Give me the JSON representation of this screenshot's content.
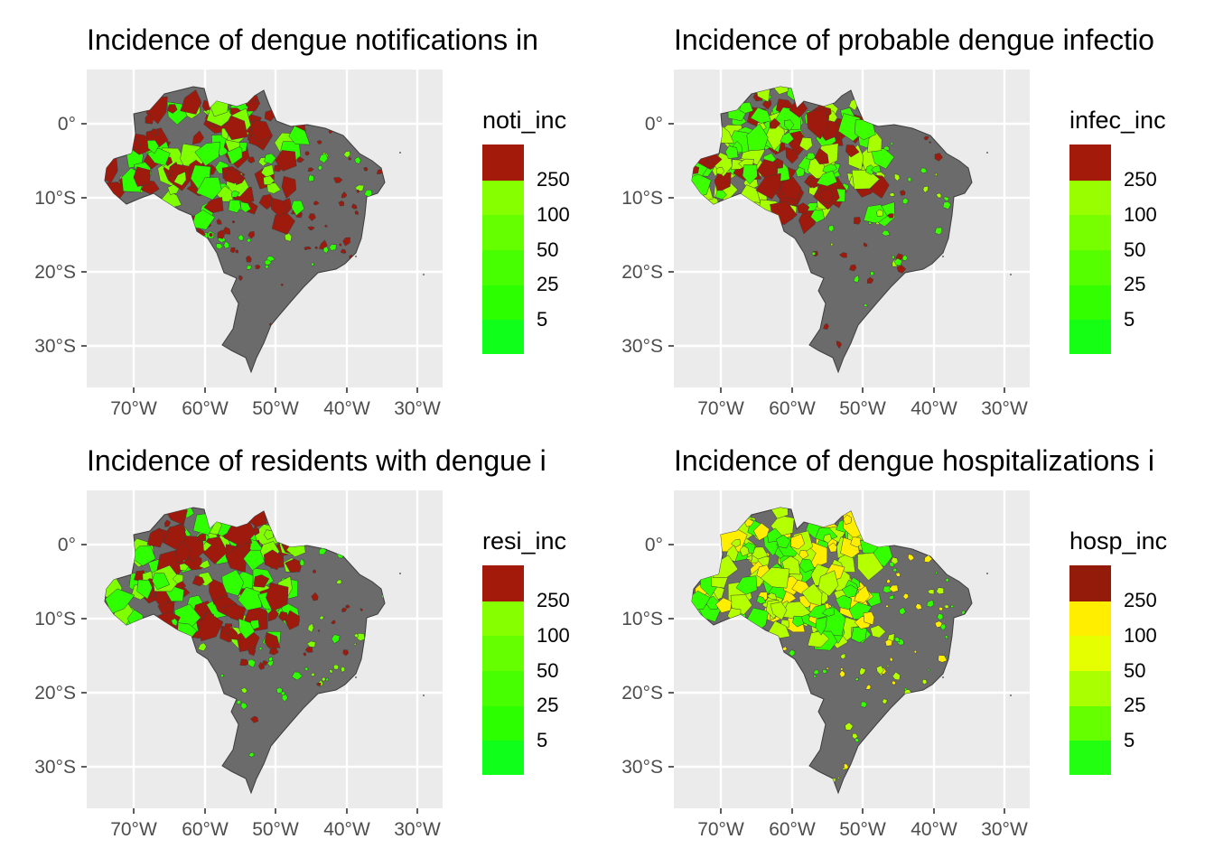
{
  "panels": [
    {
      "title": "Incidence of dengue notifications in",
      "legend": {
        "title": "noti_inc",
        "breaks": [
          "250",
          "100",
          "50",
          "25",
          "5"
        ],
        "colors": [
          "#a31a0a",
          "#86ff00",
          "#66ff00",
          "#47ff00",
          "#2cff00",
          "#0fff1a"
        ]
      },
      "palette": {
        "high": "#9e1a0c",
        "mid": "#7fff00",
        "low": "#2fff00"
      },
      "weights": [
        0.55,
        0.17,
        0.28
      ]
    },
    {
      "title": "Incidence of probable dengue infectio",
      "legend": {
        "title": "infec_inc",
        "breaks": [
          "250",
          "100",
          "50",
          "25",
          "5"
        ],
        "colors": [
          "#a31a0a",
          "#99ff00",
          "#77ff00",
          "#55ff00",
          "#33ff00",
          "#14ff14"
        ]
      },
      "palette": {
        "high": "#9e1a0c",
        "mid": "#a8ff00",
        "low": "#3cff00"
      },
      "weights": [
        0.3,
        0.3,
        0.4
      ]
    },
    {
      "title": "Incidence of residents with dengue i",
      "legend": {
        "title": "resi_inc",
        "breaks": [
          "250",
          "100",
          "50",
          "25",
          "5"
        ],
        "colors": [
          "#a31a0a",
          "#86ff00",
          "#66ff00",
          "#47ff00",
          "#2cff00",
          "#0fff1a"
        ]
      },
      "palette": {
        "high": "#9e1a0c",
        "mid": "#7fff00",
        "low": "#2fff00"
      },
      "weights": [
        0.45,
        0.25,
        0.3
      ]
    },
    {
      "title": "Incidence of dengue hospitalizations i",
      "legend": {
        "title": "hosp_inc",
        "breaks": [
          "250",
          "100",
          "50",
          "25",
          "5"
        ],
        "colors": [
          "#941a0a",
          "#ffee00",
          "#e6ff00",
          "#aaff00",
          "#66ff00",
          "#22ff11"
        ]
      },
      "palette": {
        "high": "#ffee00",
        "mid": "#b4ff00",
        "low": "#33ff00"
      },
      "weights": [
        0.25,
        0.35,
        0.4
      ]
    }
  ],
  "x_ticks": [
    "70°W",
    "60°W",
    "50°W",
    "40°W",
    "30°W"
  ],
  "y_ticks": [
    "0°",
    "10°S",
    "20°S",
    "30°S"
  ],
  "colors": {
    "panel_bg": "#ebebeb",
    "grid": "#ffffff",
    "land_no_data": "#6b6b6b",
    "border": "#3d3d3d"
  }
}
